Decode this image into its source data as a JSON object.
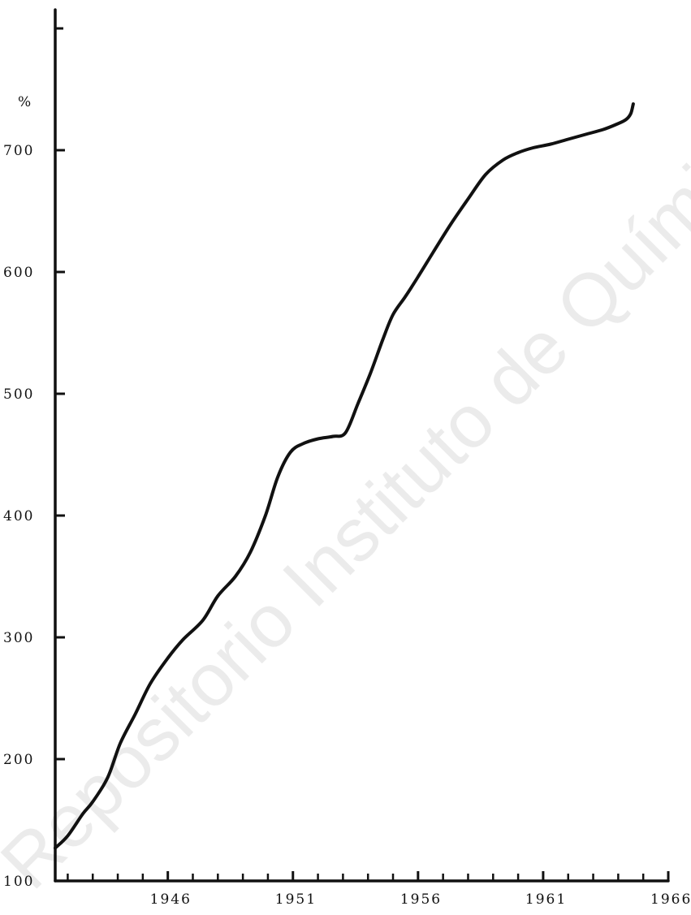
{
  "chart_data": {
    "type": "line",
    "title": "",
    "xlabel": "",
    "ylabel": "%",
    "xlim": [
      1941.5,
      1966
    ],
    "ylim": [
      100,
      800
    ],
    "x_tick_labels": [
      "1946",
      "1951",
      "1956",
      "1961",
      "1966"
    ],
    "x_ticks": [
      1946,
      1951,
      1956,
      1961,
      1966
    ],
    "y_tick_labels": [
      "100",
      "200",
      "300",
      "400",
      "500",
      "600",
      "700"
    ],
    "y_ticks": [
      100,
      200,
      300,
      400,
      500,
      600,
      700
    ],
    "grid": false,
    "legend": "none",
    "color": "#111111",
    "series": [
      {
        "x": [
          1941.5,
          1942.0,
          1942.6,
          1943.0,
          1943.6,
          1944.1,
          1944.7,
          1945.3,
          1946.0,
          1946.6,
          1947.4,
          1948.0,
          1948.7,
          1949.3,
          1949.9,
          1950.4,
          1950.9,
          1951.4,
          1952.0,
          1952.6,
          1953.1,
          1953.6,
          1954.1,
          1954.6,
          1955.0,
          1955.5,
          1956.0,
          1956.6,
          1957.3,
          1958.0,
          1958.7,
          1959.4,
          1960.0,
          1960.6,
          1961.3,
          1962.0,
          1962.7,
          1963.4,
          1963.9,
          1964.3,
          1964.5,
          1964.6
        ],
        "y": [
          127,
          137,
          155,
          165,
          185,
          213,
          237,
          262,
          283,
          298,
          314,
          334,
          350,
          370,
          400,
          432,
          452,
          459,
          463,
          465,
          468,
          492,
          517,
          545,
          565,
          580,
          596,
          616,
          639,
          660,
          680,
          692,
          698,
          702,
          705,
          709,
          713,
          717,
          721,
          725,
          730,
          738
        ]
      }
    ]
  },
  "watermark": "Repositorio Instituto de Química UNAM"
}
